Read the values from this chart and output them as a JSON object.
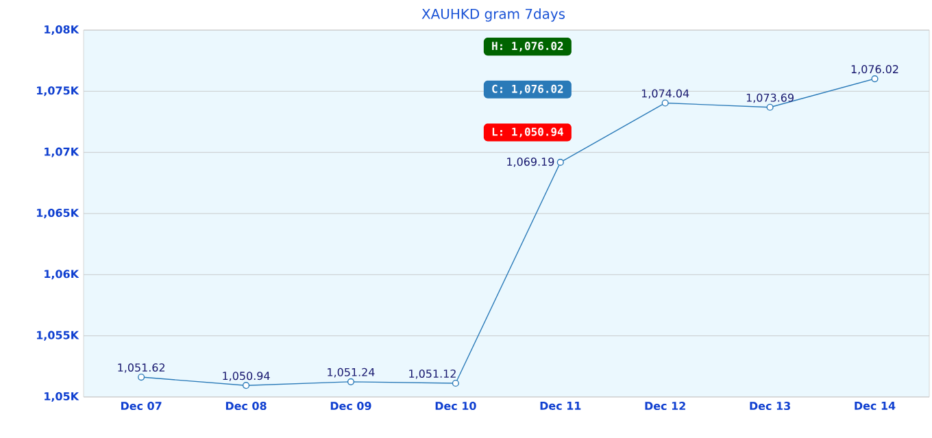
{
  "chart_data": {
    "type": "line",
    "title": "XAUHKD gram  7days",
    "categories": [
      "Dec 07",
      "Dec 08",
      "Dec 09",
      "Dec 10",
      "Dec 11",
      "Dec 12",
      "Dec 13",
      "Dec 14"
    ],
    "series": [
      {
        "color": "#2a7ab8",
        "values": [
          1051.62,
          1050.94,
          1051.24,
          1051.12,
          1069.19,
          1074.04,
          1073.69,
          1076.02
        ],
        "value_labels": [
          "1,051.62",
          "1,050.94",
          "1,051.24",
          "1,051.12",
          "1,069.19",
          "1,074.04",
          "1,073.69",
          "1,076.02"
        ]
      }
    ],
    "ylim": [
      1050,
      1080
    ],
    "yticks": [
      {
        "value": 1050,
        "label": "1,05K"
      },
      {
        "value": 1055,
        "label": "1,055K"
      },
      {
        "value": 1060,
        "label": "1,06K"
      },
      {
        "value": 1065,
        "label": "1,065K"
      },
      {
        "value": 1070,
        "label": "1,07K"
      },
      {
        "value": 1075,
        "label": "1,075K"
      },
      {
        "value": 1080,
        "label": "1,08K"
      }
    ],
    "grid": "y",
    "marker": "circle",
    "line_style": "solid",
    "annotations": [
      "H: 1,076.02",
      "C: 1,076.02",
      "L: 1,050.94"
    ]
  }
}
